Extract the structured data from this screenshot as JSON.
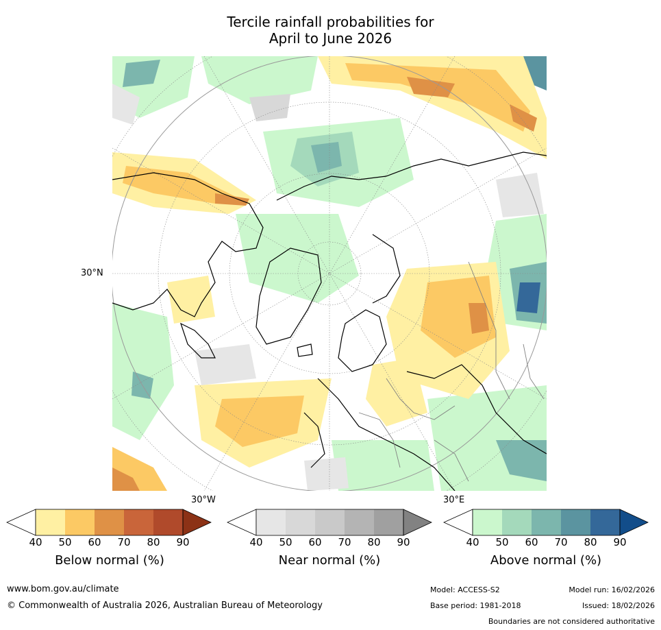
{
  "title_line1": "Tercile rainfall probabilities for",
  "title_line2": "April to June 2026",
  "map": {
    "graticule_labels": {
      "lat": "30°N",
      "lon_west": "30°W",
      "lon_east": "30°E"
    }
  },
  "colorbars": [
    {
      "title": "Below normal (%)",
      "ticks": [
        "40",
        "50",
        "60",
        "70",
        "80",
        "90"
      ],
      "colors": [
        "#fff0a3",
        "#fcc964",
        "#df9146",
        "#c9653a",
        "#b04a2b"
      ],
      "extend": "#8c3216"
    },
    {
      "title": "Near normal (%)",
      "ticks": [
        "40",
        "50",
        "60",
        "70",
        "80",
        "90"
      ],
      "colors": [
        "#e6e6e6",
        "#d8d8d8",
        "#c9c9c9",
        "#b4b4b4",
        "#a0a0a0"
      ],
      "extend": "#828282"
    },
    {
      "title": "Above normal (%)",
      "ticks": [
        "40",
        "50",
        "60",
        "70",
        "80",
        "90"
      ],
      "colors": [
        "#cbf7cd",
        "#a4d9bb",
        "#7cb6ad",
        "#5b94a0",
        "#346899"
      ],
      "extend": "#124d8a"
    }
  ],
  "footer": {
    "url": "www.bom.gov.au/climate",
    "copyright": "© Commonwealth of Australia 2026, Australian Bureau of Meteorology",
    "model": "Model: ACCESS-S2",
    "model_run": "Model run: 16/02/2026",
    "base_period": "Base period: 1981-2018",
    "issued": "Issued: 18/02/2026",
    "disclaimer": "Boundaries are not considered authoritative"
  }
}
